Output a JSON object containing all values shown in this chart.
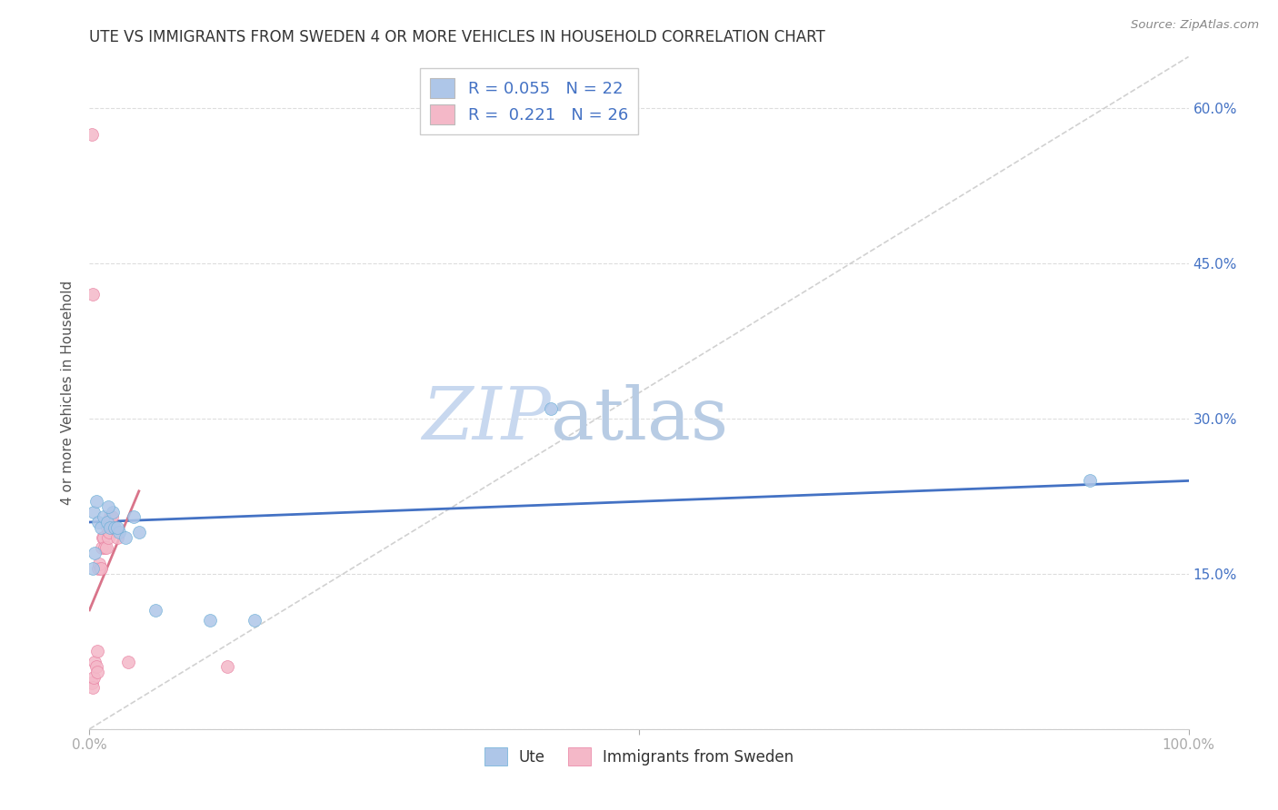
{
  "title": "UTE VS IMMIGRANTS FROM SWEDEN 4 OR MORE VEHICLES IN HOUSEHOLD CORRELATION CHART",
  "source": "Source: ZipAtlas.com",
  "ylabel": "4 or more Vehicles in Household",
  "xmin": 0.0,
  "xmax": 1.0,
  "ymin": 0.0,
  "ymax": 0.65,
  "yticks": [
    0.0,
    0.15,
    0.3,
    0.45,
    0.6
  ],
  "ytick_labels_right": [
    "",
    "15.0%",
    "30.0%",
    "45.0%",
    "60.0%"
  ],
  "legend_entries": [
    {
      "label": "R = 0.055   N = 22",
      "color": "#aec6e8"
    },
    {
      "label": "R =  0.221   N = 26",
      "color": "#f4b8c8"
    }
  ],
  "series1_label": "Ute",
  "series2_label": "Immigrants from Sweden",
  "series1_color": "#aec6e8",
  "series2_color": "#f4b8c8",
  "series1_edge": "#6aaed6",
  "series2_edge": "#e87fa0",
  "trendline1_color": "#4472c4",
  "trendline2_color": "#d9748a",
  "diagonal_color": "#cccccc",
  "background_color": "#ffffff",
  "grid_color": "#dddddd",
  "title_color": "#333333",
  "axis_label_color": "#555555",
  "tick_label_color_right": "#4472c4",
  "watermark_color": "#c8d8ef",
  "series1_x": [
    0.004,
    0.006,
    0.008,
    0.01,
    0.013,
    0.016,
    0.019,
    0.021,
    0.023,
    0.027,
    0.033,
    0.04,
    0.045,
    0.11,
    0.42,
    0.91,
    0.003,
    0.005,
    0.017,
    0.025,
    0.06,
    0.15
  ],
  "series1_y": [
    0.21,
    0.22,
    0.2,
    0.195,
    0.205,
    0.2,
    0.195,
    0.21,
    0.195,
    0.19,
    0.185,
    0.205,
    0.19,
    0.105,
    0.31,
    0.24,
    0.155,
    0.17,
    0.215,
    0.195,
    0.115,
    0.105
  ],
  "series2_x": [
    0.002,
    0.003,
    0.004,
    0.005,
    0.006,
    0.007,
    0.007,
    0.008,
    0.009,
    0.01,
    0.011,
    0.012,
    0.013,
    0.014,
    0.015,
    0.016,
    0.017,
    0.018,
    0.019,
    0.02,
    0.022,
    0.025,
    0.035,
    0.125,
    0.002,
    0.003
  ],
  "series2_y": [
    0.045,
    0.04,
    0.05,
    0.065,
    0.06,
    0.055,
    0.075,
    0.155,
    0.16,
    0.155,
    0.175,
    0.185,
    0.185,
    0.175,
    0.175,
    0.195,
    0.185,
    0.19,
    0.205,
    0.205,
    0.195,
    0.185,
    0.065,
    0.06,
    0.575,
    0.42
  ],
  "trendline1_x": [
    0.0,
    1.0
  ],
  "trendline1_y": [
    0.2,
    0.24
  ],
  "trendline2_x": [
    0.0,
    0.045
  ],
  "trendline2_y": [
    0.115,
    0.23
  ],
  "marker_size": 100
}
